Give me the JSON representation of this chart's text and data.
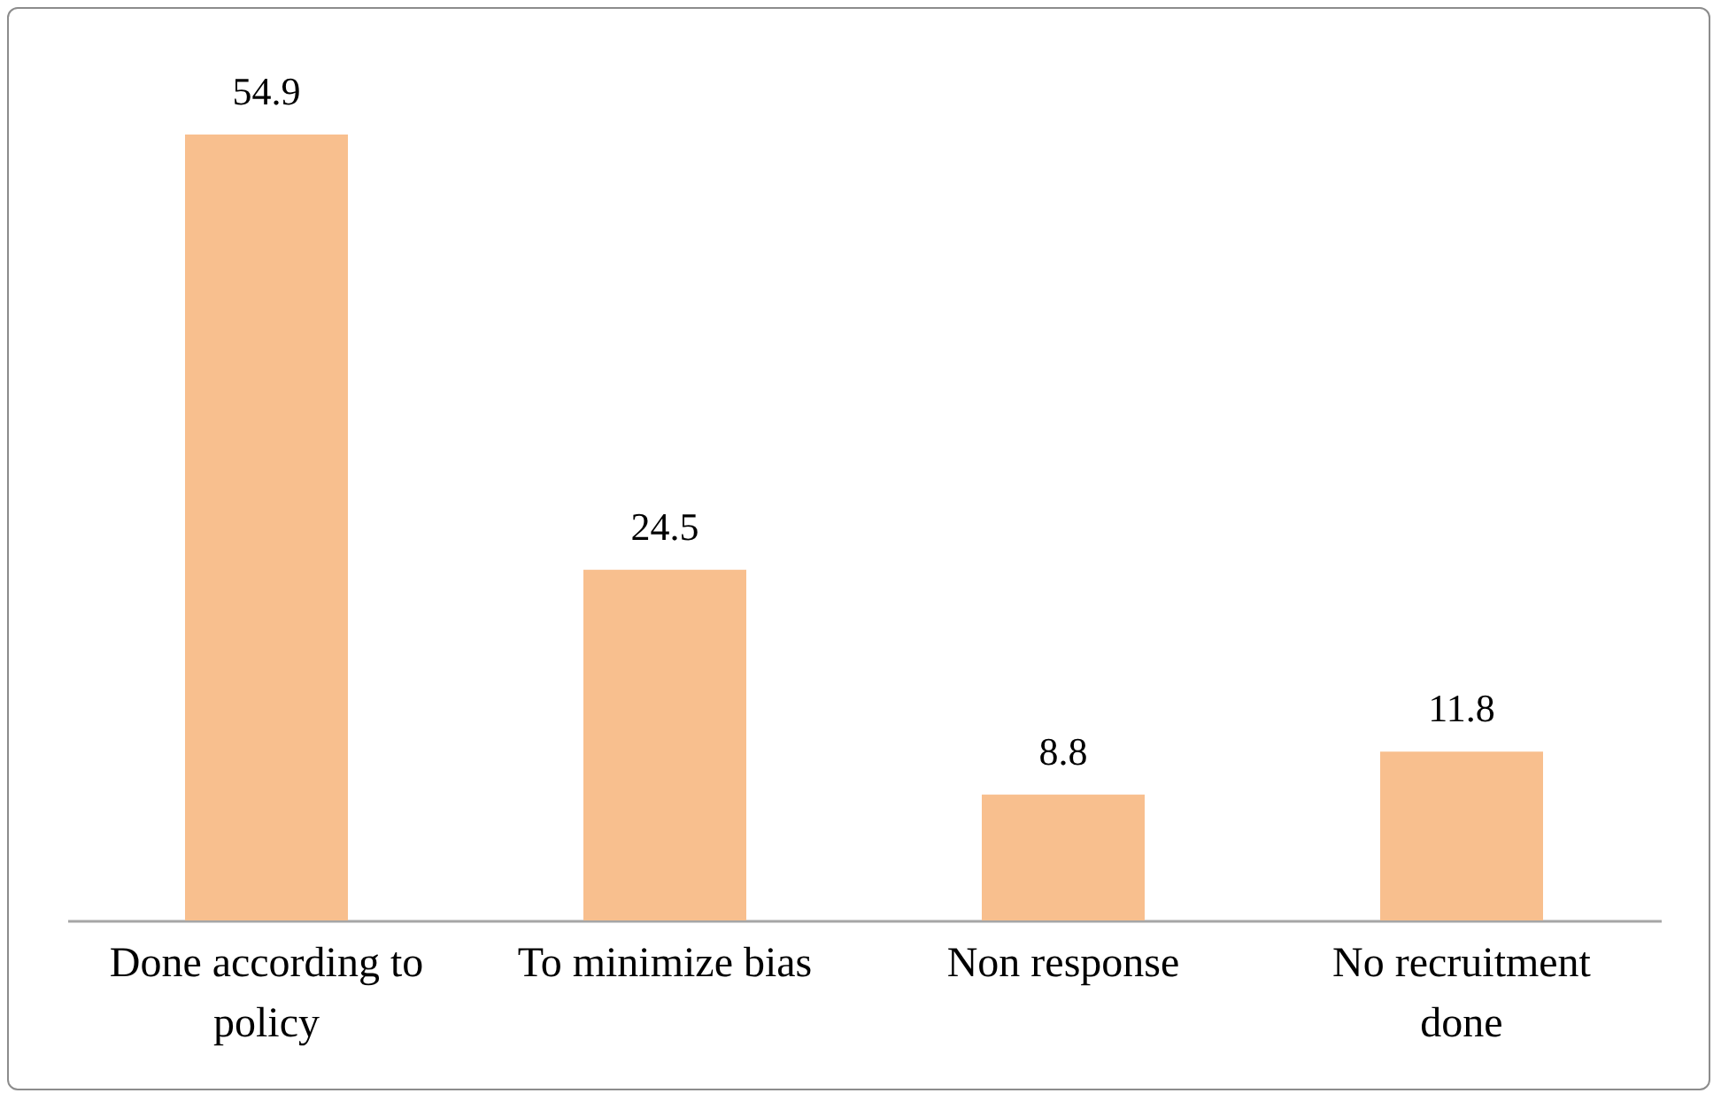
{
  "chart_data": {
    "type": "bar",
    "categories": [
      "Done according to policy",
      "To minimize bias",
      "Non response",
      "No recruitment done"
    ],
    "values": [
      54.9,
      24.5,
      8.8,
      11.8
    ],
    "color": "#f8bf8e",
    "data_labels": true,
    "grid": false
  }
}
